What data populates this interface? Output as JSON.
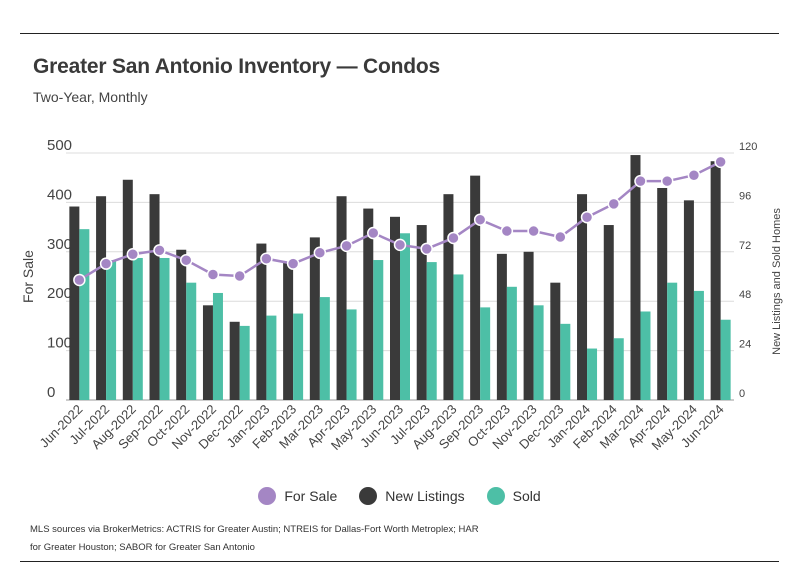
{
  "title": "Greater San Antonio Inventory — Condos",
  "subtitle": "Two-Year, Monthly",
  "source": "MLS sources via BrokerMetrics: ACTRIS for Greater Austin; NTREIS for Dallas-Fort Worth Metroplex; HAR for Greater Houston; SABOR for Greater San Antonio",
  "legend": [
    {
      "label": "For Sale",
      "color": "#a486c4"
    },
    {
      "label": "New Listings",
      "color": "#3a3a3a"
    },
    {
      "label": "Sold",
      "color": "#4dbfa6"
    }
  ],
  "chart_data": {
    "type": "bar",
    "categories": [
      "Jun-2022",
      "Jul-2022",
      "Aug-2022",
      "Sep-2022",
      "Oct-2022",
      "Nov-2022",
      "Dec-2022",
      "Jan-2023",
      "Feb-2023",
      "Mar-2023",
      "Apr-2023",
      "May-2023",
      "Jun-2023",
      "Jul-2023",
      "Aug-2023",
      "Sep-2023",
      "Oct-2023",
      "Nov-2023",
      "Dec-2023",
      "Jan-2024",
      "Feb-2024",
      "Mar-2024",
      "Apr-2024",
      "May-2024",
      "Jun-2024"
    ],
    "ylabel": "For Sale",
    "y2label": "New Listings and Sold Homes",
    "ylim": [
      0,
      500
    ],
    "y2lim": [
      0,
      120
    ],
    "yticks": [
      0,
      100,
      200,
      300,
      400,
      500
    ],
    "y2ticks": [
      0,
      24,
      48,
      72,
      96,
      120
    ],
    "grid": true,
    "legend_position": "bottom",
    "series": [
      {
        "name": "New Listings",
        "type": "bar",
        "axis": "right",
        "color": "#3a3a3a",
        "values": [
          94,
          99,
          107,
          100,
          73,
          46,
          38,
          76,
          67,
          79,
          99,
          93,
          89,
          85,
          100,
          109,
          71,
          72,
          57,
          100,
          85,
          119,
          103,
          97,
          116
        ]
      },
      {
        "name": "Sold",
        "type": "bar",
        "axis": "right",
        "color": "#4dbfa6",
        "values": [
          83,
          68,
          69,
          69,
          57,
          52,
          36,
          41,
          42,
          50,
          44,
          68,
          81,
          67,
          61,
          45,
          55,
          46,
          37,
          25,
          30,
          43,
          57,
          53,
          39
        ]
      },
      {
        "name": "For Sale",
        "type": "line",
        "axis": "left",
        "color": "#a486c4",
        "values": [
          243,
          276,
          295,
          303,
          283,
          254,
          251,
          286,
          276,
          298,
          312,
          338,
          314,
          306,
          328,
          365,
          342,
          342,
          330,
          370,
          397,
          443,
          443,
          455,
          482
        ]
      }
    ]
  }
}
